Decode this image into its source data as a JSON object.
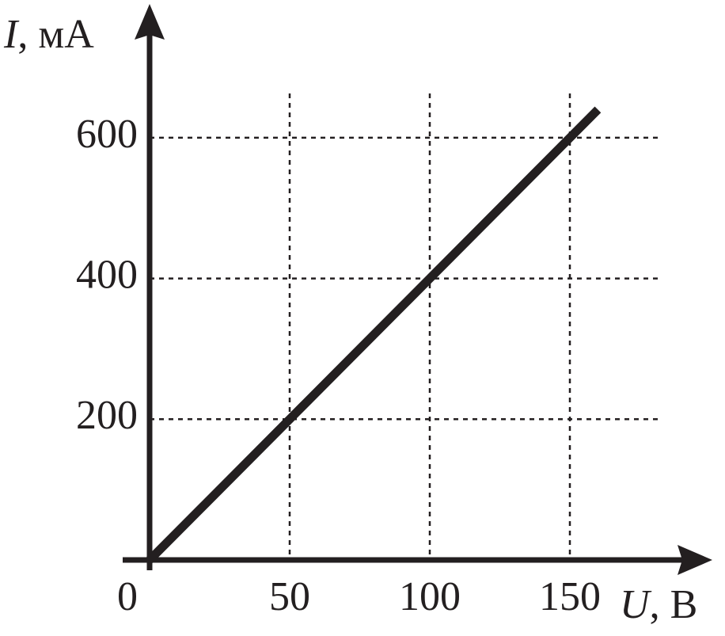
{
  "chart_data": {
    "type": "line",
    "x_label": {
      "symbol": "U",
      "rest": ", В"
    },
    "y_label": {
      "symbol": "I",
      "rest": ", мА"
    },
    "x": [
      0,
      160
    ],
    "series": [
      {
        "name": null,
        "color": "#231f20",
        "values": [
          0,
          640
        ]
      }
    ],
    "xlim": [
      0,
      200
    ],
    "ylim": [
      0,
      780
    ],
    "xticks": [
      0,
      50,
      100,
      150
    ],
    "yticks": [
      200,
      400,
      600
    ],
    "grid": true
  }
}
